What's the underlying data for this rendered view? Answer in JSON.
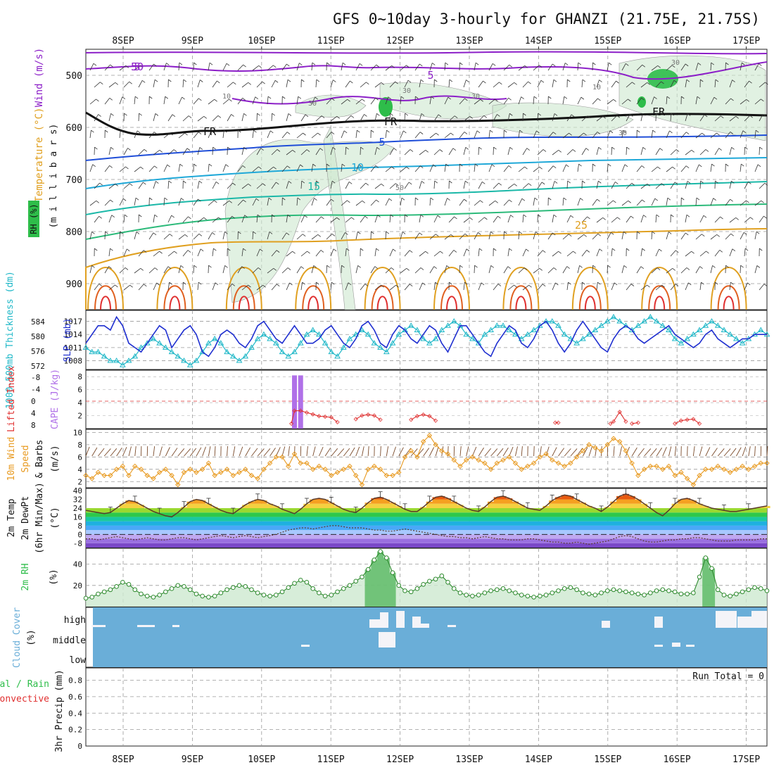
{
  "title": "GFS 0~10day 3-hourly for GHANZI (21.75E, 21.75S)",
  "date_labels": [
    "8SEP",
    "9SEP",
    "10SEP",
    "11SEP",
    "12SEP",
    "13SEP",
    "14SEP",
    "15SEP",
    "16SEP",
    "17SEP"
  ],
  "run_total_text": "Run Total = 0",
  "colors": {
    "purple_wind": "#8c1fc8",
    "temperature_blue": "#1f4ed8",
    "temp_cyan": "#1fa8d8",
    "temp_teal": "#1bb8a8",
    "temp_green": "#2cba7a",
    "temp_orange": "#e0a020",
    "temp_red": "#e03030",
    "rh_green": "#2ebd4a",
    "slp_blue": "#1f2fd0",
    "thickness_cyan": "#20b8c8",
    "cape_violet": "#b070e8",
    "lifted_red": "#e03030",
    "wind_orange": "#e89a20",
    "cloud_blue": "#6aaed8"
  },
  "chart_data": [
    {
      "type": "contour",
      "panel": "upper-air",
      "y_label_parts": [
        "Wind (m/s)",
        "Temperature (°C)"
      ],
      "y_label_sub": "(m i l l i b a r s)",
      "rh_legend": "RH (%)",
      "y_ticks": [
        500,
        600,
        700,
        800,
        900
      ],
      "ylim": [
        450,
        950
      ],
      "contour_labels": [
        "5",
        "5",
        "FR",
        "FR",
        "FR",
        "5",
        "10",
        "15",
        "25",
        "10",
        "30",
        "30",
        "10",
        "30",
        "30",
        "50",
        "30",
        "50"
      ]
    },
    {
      "type": "line",
      "panel": "slp-thickness",
      "ylabel_left": "1000-500mb Thickness (dm)",
      "ylabel_right": "SLP (mb)",
      "thickness_ticks": [
        572,
        576,
        580,
        584
      ],
      "slp_ticks": [
        1008,
        1011,
        1014,
        1017
      ],
      "series": [
        {
          "name": "SLP (mb)",
          "values": [
            1012,
            1014,
            1016,
            1016,
            1015,
            1018,
            1016,
            1012,
            1011,
            1010,
            1012,
            1014,
            1016,
            1015,
            1011,
            1013,
            1015,
            1016,
            1014,
            1010,
            1009,
            1011,
            1014,
            1015,
            1014,
            1012,
            1011,
            1013,
            1016,
            1017,
            1015,
            1013,
            1012,
            1014,
            1016,
            1014,
            1012,
            1012,
            1013,
            1015,
            1016,
            1014,
            1012,
            1011,
            1013,
            1016,
            1017,
            1015,
            1012,
            1011,
            1014,
            1016,
            1015,
            1013,
            1012,
            1014,
            1016,
            1015,
            1012,
            1010,
            1013,
            1016,
            1016,
            1014,
            1012,
            1010,
            1009,
            1012,
            1014,
            1016,
            1015,
            1012,
            1011,
            1013,
            1016,
            1017,
            1015,
            1012,
            1010,
            1012,
            1015,
            1017,
            1015,
            1013,
            1011,
            1010,
            1013,
            1015,
            1016,
            1015,
            1013,
            1012,
            1013,
            1014,
            1015,
            1016,
            1014,
            1013,
            1012,
            1011,
            1012,
            1014,
            1015,
            1013,
            1012,
            1011,
            1012,
            1013,
            1013,
            1014,
            1014,
            1014
          ]
        },
        {
          "name": "1000-500mb Thickness (dm)",
          "values": [
            1011,
            1010,
            1010,
            1009,
            1008,
            1008,
            1007,
            1008,
            1009,
            1011,
            1012,
            1013,
            1012,
            1011,
            1010,
            1009,
            1008,
            1007,
            1008,
            1010,
            1012,
            1013,
            1012,
            1010,
            1009,
            1008,
            1009,
            1011,
            1013,
            1014,
            1013,
            1012,
            1010,
            1009,
            1010,
            1012,
            1014,
            1015,
            1014,
            1012,
            1010,
            1009,
            1011,
            1013,
            1014,
            1015,
            1014,
            1012,
            1011,
            1010,
            1012,
            1014,
            1015,
            1016,
            1015,
            1013,
            1012,
            1013,
            1015,
            1016,
            1017,
            1016,
            1014,
            1013,
            1012,
            1014,
            1015,
            1016,
            1016,
            1015,
            1014,
            1013,
            1014,
            1015,
            1016,
            1017,
            1017,
            1016,
            1014,
            1013,
            1012,
            1013,
            1014,
            1015,
            1016,
            1017,
            1018,
            1017,
            1016,
            1015,
            1016,
            1017,
            1018,
            1017,
            1016,
            1015,
            1013,
            1012,
            1013,
            1014,
            1015,
            1016,
            1017,
            1016,
            1015,
            1014,
            1013,
            1012,
            1013,
            1014,
            1015,
            1014
          ]
        }
      ]
    },
    {
      "type": "bar",
      "panel": "cape-lifted-index",
      "ylabel_left": "Lifted Index",
      "ylabel_right": "CAPE (J/kg)",
      "li_ticks": [
        "-8",
        "-4",
        "0",
        "4",
        "8"
      ],
      "cape_ticks": [
        "8",
        "6",
        "4",
        "2"
      ],
      "cape_values": [
        0,
        0,
        0,
        0,
        0,
        0,
        0,
        0,
        0,
        0,
        0,
        0,
        0,
        0,
        0,
        0,
        0,
        0,
        0,
        0,
        0,
        0,
        0,
        0,
        0,
        0,
        0,
        0,
        0,
        0,
        0,
        0,
        0,
        0,
        8.2,
        8.2,
        0,
        0,
        0,
        0,
        0,
        0,
        0,
        0,
        0,
        0,
        0,
        0,
        0,
        0,
        0,
        0,
        0,
        0,
        0,
        0,
        0,
        0,
        0,
        0,
        0,
        0,
        0,
        0,
        0,
        0,
        0,
        0,
        0,
        0,
        0,
        0,
        0,
        0,
        0,
        0,
        0,
        0,
        0,
        0,
        0,
        0,
        0,
        0,
        0,
        0,
        0,
        0,
        0,
        0,
        0,
        0,
        0,
        0,
        0,
        0,
        0,
        0,
        0,
        0,
        0,
        0,
        0,
        0,
        0,
        0,
        0,
        0,
        0,
        0,
        0,
        0
      ],
      "lifted_index_segments": [
        {
          "x": [
            33.5,
            34,
            35,
            36,
            37,
            38,
            39,
            40,
            41
          ],
          "values": [
            7.5,
            3.2,
            3.2,
            3.8,
            4.4,
            5.0,
            5.2,
            5.4,
            7.0
          ]
        },
        {
          "x": [
            44,
            45,
            46,
            47,
            48
          ],
          "values": [
            6.0,
            4.8,
            4.5,
            4.8,
            6.2
          ]
        },
        {
          "x": [
            53,
            54,
            55,
            56,
            57
          ],
          "values": [
            6.2,
            5.0,
            4.5,
            5.0,
            6.5
          ]
        },
        {
          "x": [
            76.5,
            77
          ],
          "values": [
            7.2,
            7.2
          ]
        },
        {
          "x": [
            85.5,
            86,
            87,
            88
          ],
          "values": [
            7.5,
            6.8,
            3.6,
            6.8
          ]
        },
        {
          "x": [
            89,
            90
          ],
          "values": [
            7.5,
            7.2
          ]
        },
        {
          "x": [
            96,
            97,
            98,
            99,
            100
          ],
          "values": [
            7.5,
            6.5,
            6.2,
            6.0,
            7.5
          ]
        }
      ]
    },
    {
      "type": "line",
      "panel": "wind-10m",
      "ylabel_parts": [
        "10m Wind",
        "Speed",
        "& Barbs"
      ],
      "ylabel_unit": "(m/s)",
      "y_ticks": [
        2,
        4,
        6,
        8,
        10
      ],
      "ylim": [
        1,
        10.5
      ],
      "series": [
        {
          "name": "10m Wind Speed",
          "values": [
            3,
            2.5,
            3.5,
            3,
            3,
            4,
            4.5,
            3,
            4.5,
            4,
            3,
            2.5,
            3.5,
            4,
            3,
            1.5,
            3.5,
            4,
            3.5,
            4,
            5,
            3,
            3.5,
            4,
            3,
            3.5,
            4,
            3,
            2.5,
            4,
            5,
            6,
            6,
            4.5,
            6.5,
            5,
            5,
            4,
            4.5,
            4,
            3,
            3.5,
            4,
            4.5,
            3,
            1.5,
            4,
            4.5,
            4,
            3,
            3,
            3.5,
            6,
            7,
            6,
            8.5,
            9.5,
            8,
            7,
            6.5,
            5.5,
            4.5,
            5.5,
            6,
            5.5,
            5,
            4,
            5,
            5.5,
            6,
            5,
            4,
            4.5,
            5,
            6,
            6.5,
            5.5,
            5,
            4.5,
            5,
            6,
            7,
            8,
            7.5,
            7,
            8,
            9,
            8.5,
            7,
            5,
            3,
            4,
            4.5,
            4.5,
            4,
            4.5,
            3,
            3.5,
            2.5,
            1.5,
            3,
            4,
            4,
            4.5,
            4,
            3.5,
            4,
            4.5,
            4,
            4.5,
            5,
            5
          ]
        }
      ]
    },
    {
      "type": "area",
      "panel": "temp-dewpoint",
      "ylabel_parts": [
        "2m Temp",
        "2m DewPt",
        "(6hr Min/Max)"
      ],
      "ylabel_unit": "(°C)",
      "y_ticks": [
        "-8",
        "0",
        "8",
        "16",
        "24",
        "32",
        "40"
      ],
      "ylim": [
        -12,
        42
      ],
      "series": [
        {
          "name": "2m Temp",
          "values": [
            22,
            21,
            20,
            19,
            20,
            24,
            28,
            31,
            30,
            27,
            24,
            21,
            19,
            17,
            16,
            20,
            25,
            30,
            32,
            31,
            28,
            25,
            22,
            20,
            19,
            23,
            27,
            30,
            32,
            31,
            28,
            26,
            23,
            21,
            19,
            23,
            28,
            32,
            33,
            32,
            29,
            26,
            23,
            21,
            20,
            24,
            29,
            33,
            34,
            32,
            29,
            26,
            23,
            21,
            21,
            25,
            30,
            34,
            35,
            33,
            30,
            27,
            24,
            22,
            21,
            25,
            30,
            34,
            35,
            33,
            30,
            27,
            24,
            23,
            22,
            26,
            31,
            34,
            36,
            35,
            32,
            29,
            26,
            24,
            21,
            25,
            30,
            35,
            37,
            35,
            32,
            28,
            24,
            20,
            17,
            22,
            28,
            32,
            33,
            31,
            28,
            26,
            24,
            23,
            22,
            21,
            21,
            22,
            23,
            24,
            25,
            26
          ]
        },
        {
          "name": "2m DewPt",
          "values": [
            -4,
            -4,
            -5,
            -4,
            -3,
            -2,
            -3,
            -4,
            -5,
            -4,
            -3,
            -4,
            -5,
            -5,
            -4,
            -3,
            -3,
            -4,
            -5,
            -4,
            -3,
            -2,
            -1,
            -2,
            -3,
            -2,
            -1,
            -2,
            -3,
            -2,
            -1,
            0,
            2,
            4,
            5,
            6,
            6,
            5,
            6,
            7,
            8,
            8,
            7,
            6,
            6,
            6,
            5,
            4,
            4,
            3,
            3,
            4,
            5,
            4,
            3,
            2,
            1,
            0,
            -1,
            -2,
            -2,
            -3,
            -3,
            -4,
            -3,
            -2,
            -3,
            -4,
            -4,
            -5,
            -5,
            -5,
            -4,
            -4,
            -5,
            -6,
            -7,
            -7,
            -8,
            -8,
            -7,
            -8,
            -9,
            -8,
            -7,
            -6,
            -4,
            -2,
            -1,
            -2,
            -4,
            -6,
            -7,
            -7,
            -6,
            -5,
            -5,
            -4,
            -4,
            -3,
            -3,
            -4,
            -5,
            -6,
            -6,
            -6,
            -5,
            -5,
            -5,
            -5,
            -4,
            -4
          ]
        }
      ]
    },
    {
      "type": "area",
      "panel": "rh-2m",
      "ylabel": "2m RH",
      "ylabel_unit": "(%)",
      "y_ticks": [
        20,
        40
      ],
      "ylim": [
        0,
        55
      ],
      "series": [
        {
          "name": "2m RH",
          "values": [
            8,
            9,
            12,
            14,
            16,
            19,
            23,
            21,
            16,
            12,
            10,
            9,
            11,
            14,
            17,
            20,
            19,
            16,
            12,
            10,
            9,
            10,
            13,
            16,
            18,
            20,
            19,
            16,
            13,
            11,
            10,
            11,
            14,
            18,
            22,
            25,
            23,
            17,
            13,
            10,
            11,
            14,
            17,
            20,
            24,
            28,
            35,
            44,
            52,
            46,
            32,
            20,
            15,
            14,
            17,
            21,
            24,
            26,
            29,
            23,
            17,
            13,
            11,
            10,
            11,
            13,
            15,
            16,
            17,
            15,
            13,
            11,
            10,
            9,
            10,
            11,
            13,
            15,
            17,
            18,
            16,
            13,
            12,
            11,
            13,
            15,
            16,
            15,
            14,
            13,
            12,
            11,
            13,
            15,
            16,
            15,
            14,
            12,
            12,
            13,
            28,
            46,
            36,
            16,
            11,
            10,
            12,
            14,
            16,
            18,
            17,
            15
          ]
        }
      ]
    },
    {
      "type": "heatmap",
      "panel": "cloud-cover",
      "ylabel": "Cloud Cover",
      "ylabel_unit": "(%)",
      "levels": [
        "high",
        "middle",
        "low"
      ]
    },
    {
      "type": "bar",
      "panel": "precip",
      "ylabel_left": "Total / Rain",
      "ylabel_left2": "Convective",
      "ylabel_right": "3hr Precip (mm)",
      "y_ticks": [
        "0",
        "0.2",
        "0.4",
        "0.6",
        "0.8"
      ],
      "ylim": [
        0,
        0.95
      ],
      "values": []
    }
  ]
}
